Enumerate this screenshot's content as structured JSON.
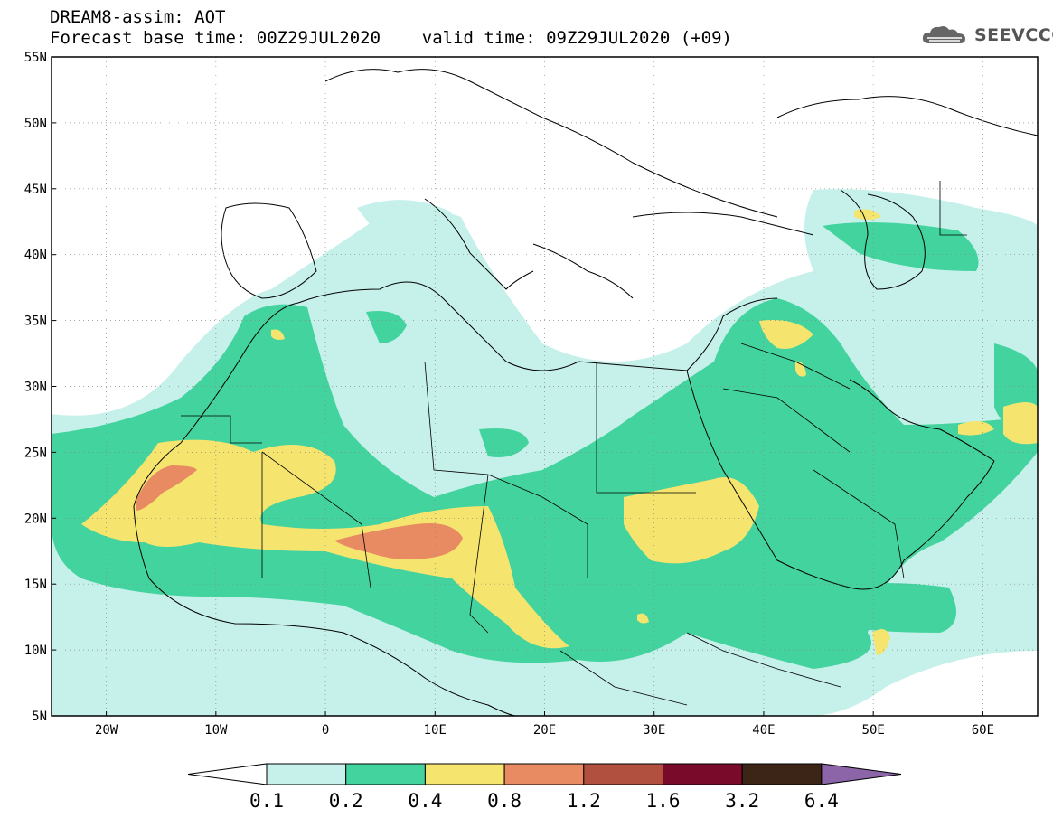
{
  "header": {
    "title": "DREAM8-assim: AOT",
    "subtitle": "Forecast base time: 00Z29JUL2020    valid time: 09Z29JUL2020 (+09)"
  },
  "logo": {
    "text": "SEEVCCC",
    "icon": "cloud-icon"
  },
  "map": {
    "lon_range": [
      -25,
      65
    ],
    "lat_range": [
      5,
      55
    ],
    "lat_ticks": [
      "5N",
      "10N",
      "15N",
      "20N",
      "25N",
      "30N",
      "35N",
      "40N",
      "45N",
      "50N",
      "55N"
    ],
    "lon_ticks": [
      "20W",
      "10W",
      "0",
      "10E",
      "20E",
      "30E",
      "40E",
      "50E",
      "60E"
    ],
    "grid": true
  },
  "colorbar": {
    "labels": [
      "0.1",
      "0.2",
      "0.4",
      "0.8",
      "1.2",
      "1.6",
      "3.2",
      "6.4"
    ],
    "colors": [
      "#ffffff",
      "#c6f0ea",
      "#43d39e",
      "#f5e56e",
      "#e88a62",
      "#b25040",
      "#7a0a2a",
      "#3c2416",
      "#8c64a8"
    ]
  }
}
